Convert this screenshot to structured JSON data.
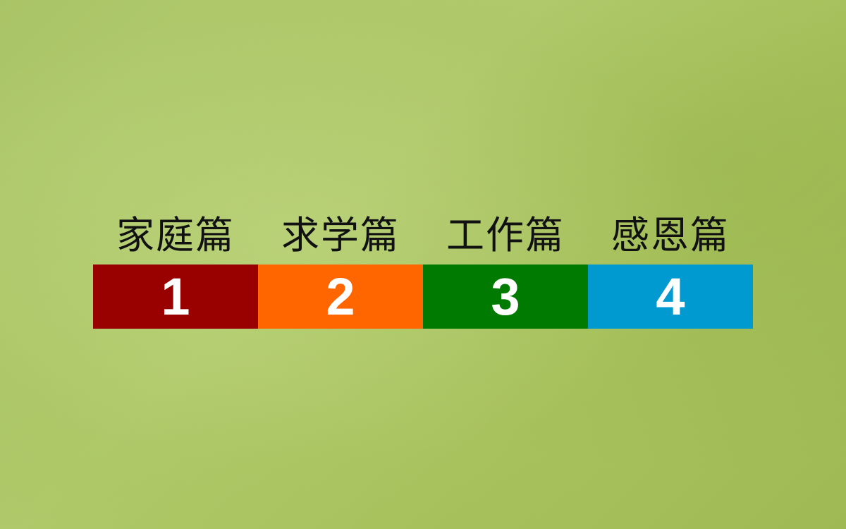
{
  "sections": [
    {
      "title": "家庭篇",
      "number": "1",
      "color": "#990000"
    },
    {
      "title": "求学篇",
      "number": "2",
      "color": "#ff6600"
    },
    {
      "title": "工作篇",
      "number": "3",
      "color": "#007a00"
    },
    {
      "title": "感恩篇",
      "number": "4",
      "color": "#0099d0"
    }
  ]
}
